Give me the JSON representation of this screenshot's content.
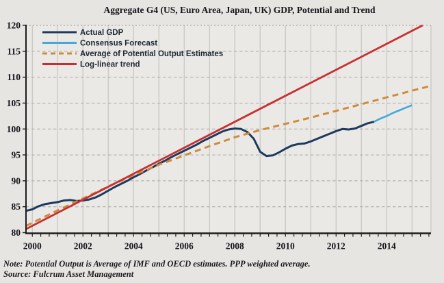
{
  "notes": {
    "line1": "Note: Potential Output is Average of IMF and OECD estimates. PPP weighted average.",
    "line2": "Source: Fulcrum Asset Management"
  },
  "colors": {
    "background": "#e7e5e1",
    "plot_background": "#eae9e5",
    "axis": "#1c1c1c",
    "gridline_vertical": "#c5c4c1",
    "gridline_horizontal": "#a9a8a4",
    "gridline_top_dotted": "#9b9a97",
    "tick_text": "#15151c",
    "actual_gdp": "#1d3a5f",
    "consensus_forecast": "#44a8da",
    "potential_output": "#cf8a3e",
    "log_linear_trend": "#c92f30"
  },
  "chart_data": {
    "type": "line",
    "title": "Aggregate G4 (US, Euro Area, Japan, UK) GDP, Potential and Trend",
    "xlabel": "",
    "ylabel": "",
    "xlim": [
      1999.75,
      2015.75
    ],
    "ylim": [
      80,
      120
    ],
    "x_ticks": [
      2000,
      2002,
      2004,
      2006,
      2008,
      2010,
      2012,
      2014
    ],
    "y_ticks": [
      80,
      85,
      90,
      95,
      100,
      105,
      110,
      115,
      120
    ],
    "grid": {
      "vertical_years": [
        2000,
        2001,
        2002,
        2003,
        2004,
        2005,
        2006,
        2007,
        2008,
        2009,
        2010,
        2011,
        2012,
        2013,
        2014,
        2015
      ],
      "vertical_style": "solid",
      "horizontal_style": "dashed",
      "top_line_style": "dotted"
    },
    "legend_position": "top-left",
    "series": [
      {
        "name": "Actual GDP",
        "color": "#1d3a5f",
        "style": "solid",
        "width": 3,
        "x": [
          1999.75,
          2000,
          2000.25,
          2000.5,
          2000.75,
          2001,
          2001.25,
          2001.5,
          2001.75,
          2002,
          2002.25,
          2002.5,
          2002.75,
          2003,
          2003.25,
          2003.5,
          2003.75,
          2004,
          2004.25,
          2004.5,
          2004.75,
          2005,
          2005.25,
          2005.5,
          2005.75,
          2006,
          2006.25,
          2006.5,
          2006.75,
          2007,
          2007.25,
          2007.5,
          2007.75,
          2008,
          2008.25,
          2008.5,
          2008.75,
          2009,
          2009.25,
          2009.5,
          2009.75,
          2010,
          2010.25,
          2010.5,
          2010.75,
          2011,
          2011.25,
          2011.5,
          2011.75,
          2012,
          2012.25,
          2012.5,
          2012.75,
          2013,
          2013.25,
          2013.5
        ],
        "y": [
          84.2,
          84.5,
          85.1,
          85.5,
          85.7,
          85.9,
          86.2,
          86.3,
          86.1,
          86.2,
          86.4,
          86.8,
          87.4,
          88.1,
          88.8,
          89.4,
          90.0,
          90.7,
          91.3,
          92.0,
          92.6,
          93.3,
          93.9,
          94.6,
          95.2,
          95.8,
          96.4,
          97.0,
          97.7,
          98.3,
          98.9,
          99.5,
          99.9,
          100.1,
          100.0,
          99.4,
          98.1,
          95.6,
          94.8,
          94.9,
          95.5,
          96.2,
          96.8,
          97.1,
          97.2,
          97.6,
          98.1,
          98.6,
          99.1,
          99.6,
          100.0,
          99.9,
          100.1,
          100.6,
          101.1,
          101.4
        ]
      },
      {
        "name": "Consensus Forecast",
        "color": "#44a8da",
        "style": "solid",
        "width": 2.6,
        "x": [
          2013.5,
          2013.75,
          2014,
          2014.25,
          2014.5,
          2014.75,
          2015
        ],
        "y": [
          101.4,
          102.0,
          102.5,
          103.1,
          103.6,
          104.1,
          104.6
        ]
      },
      {
        "name": "Average of Potential Output Estimates",
        "color": "#cf8a3e",
        "style": "dashed",
        "width": 3,
        "x": [
          1999.75,
          2000,
          2001,
          2002,
          2003,
          2004,
          2005,
          2006,
          2007,
          2008,
          2009,
          2010,
          2011,
          2012,
          2013,
          2014,
          2015,
          2015.65
        ],
        "y": [
          81.3,
          81.9,
          84.3,
          86.6,
          88.9,
          91.1,
          93.1,
          94.9,
          96.7,
          98.4,
          99.8,
          101.0,
          102.2,
          103.5,
          104.8,
          106.1,
          107.4,
          108.2
        ]
      },
      {
        "name": "Log-linear trend",
        "color": "#c92f30",
        "style": "solid",
        "width": 2.8,
        "x": [
          1999.75,
          2015.42
        ],
        "y": [
          80.7,
          120.0
        ]
      }
    ]
  }
}
